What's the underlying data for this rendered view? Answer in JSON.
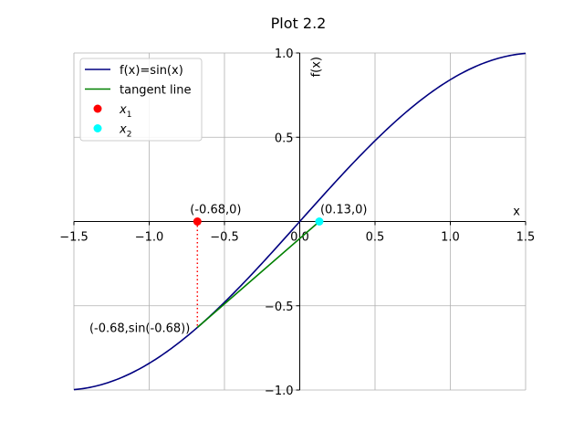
{
  "chart_data": {
    "type": "line",
    "title": "Plot 2.2",
    "xlabel": "x",
    "ylabel": "f(x)",
    "xlim": [
      -1.5,
      1.5
    ],
    "ylim": [
      -1.0,
      1.0
    ],
    "grid": true,
    "legend_position": "top-left",
    "x_ticks": [
      -1.5,
      -1.0,
      -0.5,
      0.0,
      0.5,
      1.0,
      1.5
    ],
    "x_tick_labels": [
      "−1.5",
      "−1.0",
      "−0.5",
      "0.0",
      "0.5",
      "1.0",
      "1.5"
    ],
    "y_ticks": [
      -1.0,
      -0.5,
      0.5,
      1.0
    ],
    "y_tick_labels": [
      "−1.0",
      "−0.5",
      "0.5",
      "1.0"
    ],
    "series": [
      {
        "name": "f(x)=sin(x)",
        "kind": "function",
        "function": "sin",
        "x_range": [
          -1.5,
          1.5
        ],
        "color": "#000080"
      },
      {
        "name": "tangent line",
        "kind": "line",
        "x": [
          -0.68,
          0.13
        ],
        "y": [
          -0.6288,
          0.0
        ],
        "color": "#008000"
      },
      {
        "name": "x_1",
        "kind": "point",
        "x": [
          -0.68
        ],
        "y": [
          0.0
        ],
        "color": "#ff0000"
      },
      {
        "name": "x_2",
        "kind": "point",
        "x": [
          0.13
        ],
        "y": [
          0.0
        ],
        "color": "#00ffff"
      }
    ],
    "dotted_segment": {
      "x": [
        -0.68,
        -0.68
      ],
      "y": [
        0.0,
        -0.6288
      ],
      "color": "#ff0000"
    },
    "annotations": [
      {
        "text": "(-0.68,0)",
        "x": -0.68,
        "y": 0.0,
        "anchor": "above"
      },
      {
        "text": "(0.13,0)",
        "x": 0.13,
        "y": 0.0,
        "anchor": "above-right"
      },
      {
        "text": "(-0.68,sin(-0.68))",
        "x": -0.68,
        "y": -0.6288,
        "anchor": "left"
      }
    ],
    "legend": [
      {
        "label": "f(x)=sin(x)",
        "symbol": "line",
        "color": "#000080"
      },
      {
        "label": "tangent line",
        "symbol": "line",
        "color": "#008000"
      },
      {
        "label": "x",
        "sub": "1",
        "symbol": "dot",
        "color": "#ff0000"
      },
      {
        "label": "x",
        "sub": "2",
        "symbol": "dot",
        "color": "#00ffff"
      }
    ]
  }
}
